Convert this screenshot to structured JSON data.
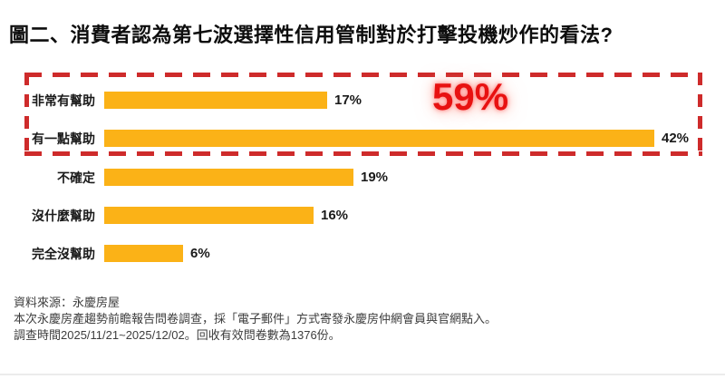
{
  "title": "圖二、消費者認為第七波選擇性信用管制對於打擊投機炒作的看法?",
  "chart_data": {
    "type": "bar",
    "orientation": "horizontal",
    "categories": [
      "非常有幫助",
      "有一點幫助",
      "不確定",
      "沒什麼幫助",
      "完全沒幫助"
    ],
    "values": [
      17,
      42,
      19,
      16,
      6
    ],
    "value_labels": [
      "17%",
      "42%",
      "19%",
      "16%",
      "6%"
    ],
    "xlim": [
      0,
      42
    ],
    "grid": false,
    "legend": "none",
    "bar_color": "#FBB217",
    "highlight": {
      "label": "59%",
      "color": "#E81111",
      "box_color": "#CE2B2B",
      "covers_categories": [
        "非常有幫助",
        "有一點幫助"
      ]
    }
  },
  "footer": {
    "line1": "資料來源：永慶房屋",
    "line2": "本次永慶房產趨勢前瞻報告問卷調查，採「電子郵件」方式寄發永慶房仲網會員與官網點入。",
    "line3": "調查時間2025/11/21~2025/12/02。回收有效問卷數為1376份。"
  }
}
